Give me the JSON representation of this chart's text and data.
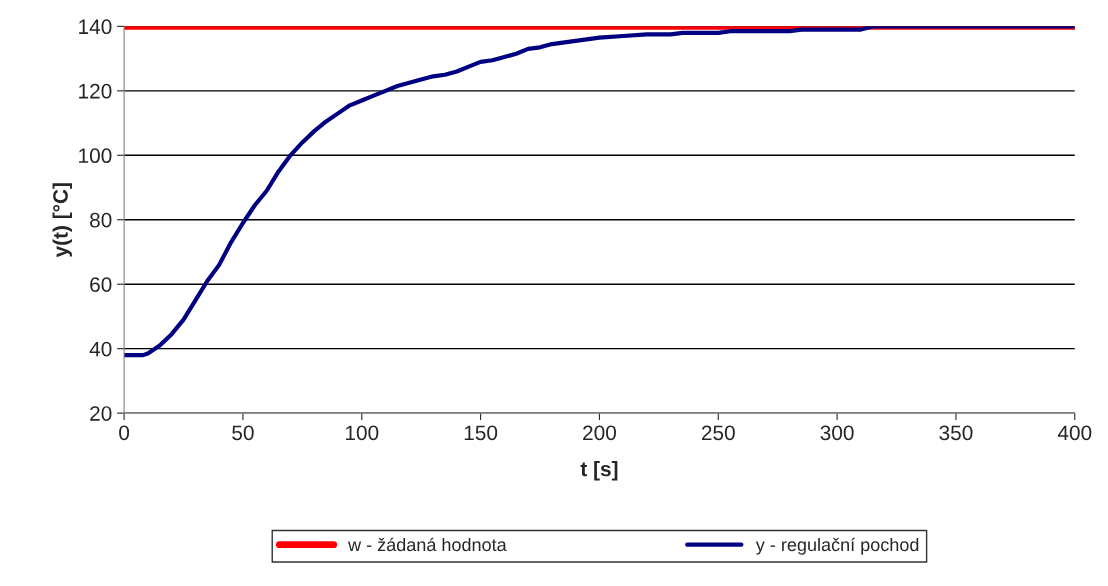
{
  "chart_data": {
    "type": "line",
    "xlabel": "t [s]",
    "ylabel": "y(t) [°C]",
    "xlim": [
      0,
      400
    ],
    "xticks": [
      0,
      50,
      100,
      150,
      200,
      250,
      300,
      350,
      400
    ],
    "ylim": [
      20,
      140
    ],
    "yticks": [
      20,
      40,
      60,
      80,
      100,
      120,
      140
    ],
    "grid": "y",
    "legend": "bottom",
    "line_style": "solid",
    "marker": "none",
    "series": [
      {
        "name": "w - žádaná hodnota",
        "color": "#ff0000",
        "x": [
          0,
          400
        ],
        "values": [
          140,
          140
        ]
      },
      {
        "name": "y - regulační pochod",
        "color": "#000080",
        "x": [
          0,
          5,
          8,
          10,
          15,
          20,
          25,
          30,
          35,
          40,
          45,
          50,
          55,
          60,
          65,
          70,
          75,
          80,
          85,
          90,
          95,
          100,
          105,
          110,
          115,
          120,
          125,
          130,
          135,
          140,
          145,
          150,
          155,
          160,
          165,
          170,
          175,
          180,
          190,
          200,
          210,
          220,
          230,
          235,
          250,
          255,
          280,
          285,
          310,
          315,
          400
        ],
        "values": [
          38,
          38,
          38,
          38.5,
          41,
          44.5,
          49,
          55,
          61,
          66,
          73,
          79,
          84.5,
          89,
          95,
          100,
          104,
          107.5,
          110.5,
          113,
          115.5,
          117,
          118.5,
          120,
          121.5,
          122.5,
          123.5,
          124.5,
          125,
          126,
          127.5,
          129,
          129.5,
          130.5,
          131.5,
          133,
          133.5,
          134.5,
          135.5,
          136.5,
          137,
          137.5,
          137.5,
          138,
          138,
          138.5,
          138.5,
          139,
          139,
          140,
          140
        ]
      }
    ]
  }
}
